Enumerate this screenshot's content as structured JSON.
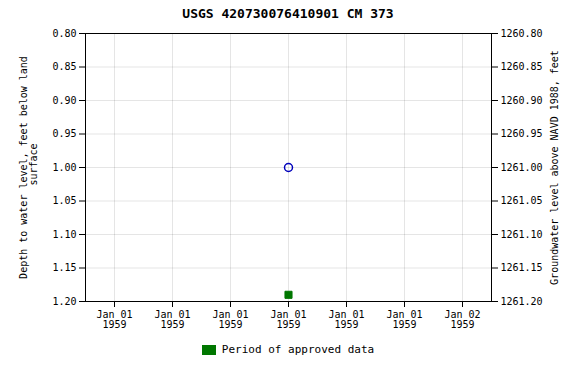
{
  "chart_data": {
    "type": "scatter",
    "title": "USGS 420730076410901 CM 373",
    "ylabel": "Depth to water level, feet below land\n surface",
    "y2label": "Groundwater level above NAVD 1988, feet",
    "categories": [
      "Jan 01\n1959",
      "Jan 01\n1959",
      "Jan 01\n1959",
      "Jan 01\n1959",
      "Jan 01\n1959",
      "Jan 01\n1959",
      "Jan 02\n1959"
    ],
    "series": [
      {
        "color": "#0000bb",
        "marker": "open_circle",
        "values": [
          null,
          null,
          null,
          1.0,
          null,
          null,
          null
        ]
      },
      {
        "name": "Period of approved data",
        "color": "#007700",
        "marker": "square",
        "values": [
          null,
          null,
          null,
          1.19,
          null,
          null,
          null
        ]
      }
    ],
    "ylim": [
      1.2,
      0.8
    ],
    "yticks": [
      {
        "value": 0.8,
        "label": "0.80"
      },
      0.85,
      {
        "value": 0.9,
        "label": "0.90"
      },
      0.95,
      {
        "value": 1.0,
        "label": "1.00"
      },
      1.05,
      {
        "value": 1.1,
        "label": "1.10"
      },
      1.15,
      {
        "value": 1.2,
        "label": "1.20"
      }
    ],
    "y2lim": [
      1261.2,
      1260.8
    ],
    "y2ticks": [
      {
        "value": 1261.2,
        "label": "1261.20"
      },
      1261.15,
      {
        "value": 1261.1,
        "label": "1261.10"
      },
      1261.05,
      {
        "value": 1261,
        "label": "1261.00"
      },
      1260.95,
      {
        "value": 1260.9,
        "label": "1260.90"
      },
      1260.85,
      {
        "value": 1260.8,
        "label": "1260.80"
      }
    ],
    "grid": true,
    "legend": "bottom"
  }
}
